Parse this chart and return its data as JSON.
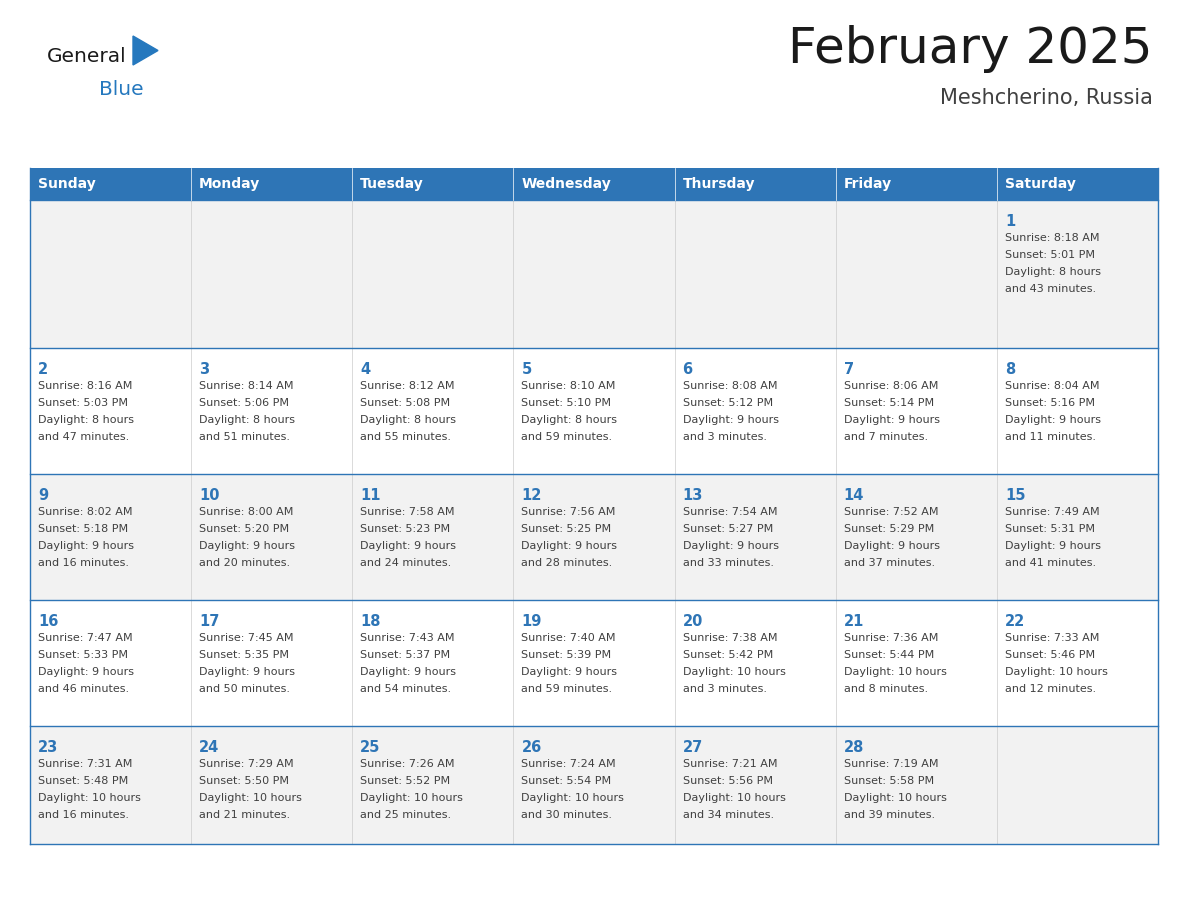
{
  "title": "February 2025",
  "subtitle": "Meshcherino, Russia",
  "header_bg": "#2E75B6",
  "header_text_color": "#FFFFFF",
  "cell_bg_light": "#F2F2F2",
  "cell_bg_white": "#FFFFFF",
  "cell_border_color": "#2E75B6",
  "day_number_color": "#2E75B6",
  "cell_text_color": "#404040",
  "days_of_week": [
    "Sunday",
    "Monday",
    "Tuesday",
    "Wednesday",
    "Thursday",
    "Friday",
    "Saturday"
  ],
  "logo_general_color": "#1a1a1a",
  "logo_blue_color": "#2578BE",
  "calendar_data": [
    [
      null,
      null,
      null,
      null,
      null,
      null,
      1
    ],
    [
      2,
      3,
      4,
      5,
      6,
      7,
      8
    ],
    [
      9,
      10,
      11,
      12,
      13,
      14,
      15
    ],
    [
      16,
      17,
      18,
      19,
      20,
      21,
      22
    ],
    [
      23,
      24,
      25,
      26,
      27,
      28,
      null
    ]
  ],
  "cell_info": {
    "1": {
      "sunrise": "8:18 AM",
      "sunset": "5:01 PM",
      "daylight_hours": 8,
      "daylight_minutes": 43
    },
    "2": {
      "sunrise": "8:16 AM",
      "sunset": "5:03 PM",
      "daylight_hours": 8,
      "daylight_minutes": 47
    },
    "3": {
      "sunrise": "8:14 AM",
      "sunset": "5:06 PM",
      "daylight_hours": 8,
      "daylight_minutes": 51
    },
    "4": {
      "sunrise": "8:12 AM",
      "sunset": "5:08 PM",
      "daylight_hours": 8,
      "daylight_minutes": 55
    },
    "5": {
      "sunrise": "8:10 AM",
      "sunset": "5:10 PM",
      "daylight_hours": 8,
      "daylight_minutes": 59
    },
    "6": {
      "sunrise": "8:08 AM",
      "sunset": "5:12 PM",
      "daylight_hours": 9,
      "daylight_minutes": 3
    },
    "7": {
      "sunrise": "8:06 AM",
      "sunset": "5:14 PM",
      "daylight_hours": 9,
      "daylight_minutes": 7
    },
    "8": {
      "sunrise": "8:04 AM",
      "sunset": "5:16 PM",
      "daylight_hours": 9,
      "daylight_minutes": 11
    },
    "9": {
      "sunrise": "8:02 AM",
      "sunset": "5:18 PM",
      "daylight_hours": 9,
      "daylight_minutes": 16
    },
    "10": {
      "sunrise": "8:00 AM",
      "sunset": "5:20 PM",
      "daylight_hours": 9,
      "daylight_minutes": 20
    },
    "11": {
      "sunrise": "7:58 AM",
      "sunset": "5:23 PM",
      "daylight_hours": 9,
      "daylight_minutes": 24
    },
    "12": {
      "sunrise": "7:56 AM",
      "sunset": "5:25 PM",
      "daylight_hours": 9,
      "daylight_minutes": 28
    },
    "13": {
      "sunrise": "7:54 AM",
      "sunset": "5:27 PM",
      "daylight_hours": 9,
      "daylight_minutes": 33
    },
    "14": {
      "sunrise": "7:52 AM",
      "sunset": "5:29 PM",
      "daylight_hours": 9,
      "daylight_minutes": 37
    },
    "15": {
      "sunrise": "7:49 AM",
      "sunset": "5:31 PM",
      "daylight_hours": 9,
      "daylight_minutes": 41
    },
    "16": {
      "sunrise": "7:47 AM",
      "sunset": "5:33 PM",
      "daylight_hours": 9,
      "daylight_minutes": 46
    },
    "17": {
      "sunrise": "7:45 AM",
      "sunset": "5:35 PM",
      "daylight_hours": 9,
      "daylight_minutes": 50
    },
    "18": {
      "sunrise": "7:43 AM",
      "sunset": "5:37 PM",
      "daylight_hours": 9,
      "daylight_minutes": 54
    },
    "19": {
      "sunrise": "7:40 AM",
      "sunset": "5:39 PM",
      "daylight_hours": 9,
      "daylight_minutes": 59
    },
    "20": {
      "sunrise": "7:38 AM",
      "sunset": "5:42 PM",
      "daylight_hours": 10,
      "daylight_minutes": 3
    },
    "21": {
      "sunrise": "7:36 AM",
      "sunset": "5:44 PM",
      "daylight_hours": 10,
      "daylight_minutes": 8
    },
    "22": {
      "sunrise": "7:33 AM",
      "sunset": "5:46 PM",
      "daylight_hours": 10,
      "daylight_minutes": 12
    },
    "23": {
      "sunrise": "7:31 AM",
      "sunset": "5:48 PM",
      "daylight_hours": 10,
      "daylight_minutes": 16
    },
    "24": {
      "sunrise": "7:29 AM",
      "sunset": "5:50 PM",
      "daylight_hours": 10,
      "daylight_minutes": 21
    },
    "25": {
      "sunrise": "7:26 AM",
      "sunset": "5:52 PM",
      "daylight_hours": 10,
      "daylight_minutes": 25
    },
    "26": {
      "sunrise": "7:24 AM",
      "sunset": "5:54 PM",
      "daylight_hours": 10,
      "daylight_minutes": 30
    },
    "27": {
      "sunrise": "7:21 AM",
      "sunset": "5:56 PM",
      "daylight_hours": 10,
      "daylight_minutes": 34
    },
    "28": {
      "sunrise": "7:19 AM",
      "sunset": "5:58 PM",
      "daylight_hours": 10,
      "daylight_minutes": 39
    }
  }
}
